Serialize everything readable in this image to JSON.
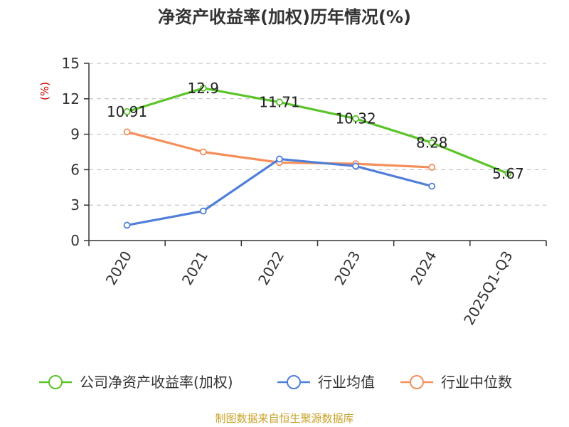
{
  "chart_data": {
    "type": "line",
    "title": "净资产收益率(加权)历年情况(%)",
    "ylabel": "(%)",
    "xlabel": "",
    "categories": [
      "2020",
      "2021",
      "2022",
      "2023",
      "2024",
      "2025Q1-Q3"
    ],
    "ylim": [
      0,
      15
    ],
    "yticks": [
      0,
      3,
      6,
      9,
      12,
      15
    ],
    "grid": true,
    "legend_position": "bottom",
    "series": [
      {
        "name": "公司净资产收益率(加权)",
        "color": "#5cc42a",
        "values": [
          10.91,
          12.9,
          11.71,
          10.32,
          8.28,
          5.67
        ],
        "labels": [
          "10.91",
          "12.9",
          "11.71",
          "10.32",
          "8.28",
          "5.67"
        ]
      },
      {
        "name": "行业均值",
        "color": "#4f7fd9",
        "values": [
          1.3,
          2.5,
          6.9,
          6.3,
          4.6,
          null
        ]
      },
      {
        "name": "行业中位数",
        "color": "#f58f5a",
        "values": [
          9.2,
          7.5,
          6.6,
          6.5,
          6.2,
          null
        ]
      }
    ],
    "source": "制图数据来自恒生聚源数据库"
  }
}
